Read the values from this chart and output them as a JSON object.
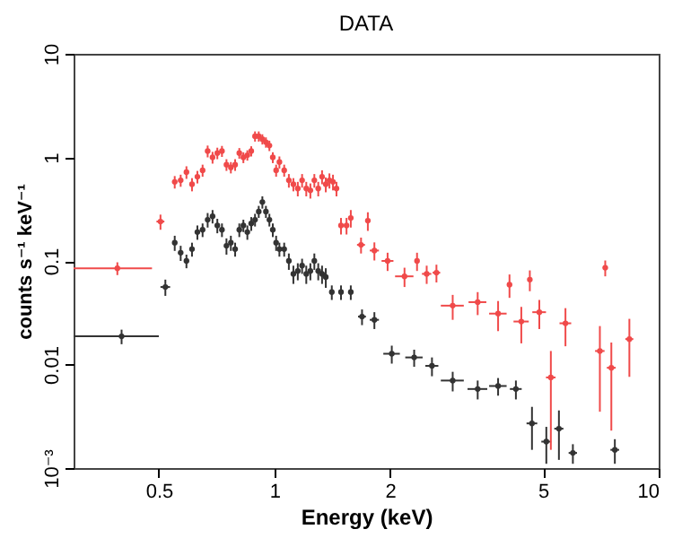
{
  "chart_data": {
    "type": "scatter",
    "title": "DATA",
    "xlabel": "Energy (keV)",
    "ylabel": "counts s⁻¹ keV⁻¹",
    "log": "xy",
    "xlim": [
      0.3,
      10
    ],
    "xticks": [
      0.5,
      1,
      2,
      5,
      10
    ],
    "ylim": [
      0.001,
      10
    ],
    "yticks": [
      {
        "value": 0.001,
        "label": "10⁻³"
      },
      0.01,
      0.1,
      1,
      10
    ],
    "series": [
      {
        "color": "#f04a4a",
        "x": [
          0.39,
          0.505,
          0.55,
          0.57,
          0.59,
          0.61,
          0.63,
          0.65,
          0.67,
          0.69,
          0.71,
          0.73,
          0.75,
          0.77,
          0.79,
          0.81,
          0.83,
          0.85,
          0.87,
          0.89,
          0.91,
          0.93,
          0.95,
          0.97,
          0.99,
          1.01,
          1.03,
          1.06,
          1.09,
          1.12,
          1.15,
          1.18,
          1.21,
          1.24,
          1.27,
          1.3,
          1.33,
          1.36,
          1.39,
          1.42,
          1.45,
          1.49,
          1.54,
          1.58,
          1.68,
          1.75,
          1.82,
          1.97,
          2.18,
          2.35,
          2.49,
          2.64,
          2.91,
          3.38,
          3.82,
          4.09,
          4.39,
          4.62,
          4.89,
          5.24,
          5.72,
          7.03,
          7.26,
          7.53,
          8.39
        ],
        "values": [
          0.085,
          0.24,
          0.58,
          0.6,
          0.72,
          0.55,
          0.65,
          0.75,
          1.15,
          1.0,
          1.1,
          1.15,
          0.85,
          0.8,
          0.85,
          1.1,
          1.0,
          1.05,
          1.15,
          1.6,
          1.6,
          1.5,
          1.4,
          1.3,
          1.0,
          0.75,
          0.9,
          0.75,
          0.6,
          0.55,
          0.5,
          0.6,
          0.5,
          0.48,
          0.6,
          0.5,
          0.65,
          0.55,
          0.6,
          0.58,
          0.5,
          0.22,
          0.22,
          0.26,
          0.143,
          0.245,
          0.126,
          0.1,
          0.071,
          0.1,
          0.075,
          0.077,
          0.037,
          0.04,
          0.031,
          0.059,
          0.026,
          0.066,
          0.032,
          0.0075,
          0.025,
          0.0135,
          0.086,
          0.0093,
          0.0176
        ],
        "xerrors": [
          0.09,
          0.012,
          0.008,
          0.008,
          0.008,
          0.008,
          0.008,
          0.008,
          0.008,
          0.008,
          0.008,
          0.008,
          0.008,
          0.008,
          0.008,
          0.008,
          0.008,
          0.008,
          0.008,
          0.008,
          0.008,
          0.008,
          0.008,
          0.008,
          0.008,
          0.01,
          0.01,
          0.01,
          0.01,
          0.01,
          0.01,
          0.01,
          0.01,
          0.01,
          0.01,
          0.01,
          0.01,
          0.01,
          0.01,
          0.01,
          0.01,
          0.02,
          0.02,
          0.015,
          0.04,
          0.02,
          0.05,
          0.07,
          0.12,
          0.03,
          0.07,
          0.06,
          0.2,
          0.18,
          0.2,
          0.05,
          0.2,
          0.05,
          0.2,
          0.15,
          0.2,
          0.2,
          0.1,
          0.2,
          0.2
        ],
        "errors": [
          0.012,
          0.04,
          0.08,
          0.08,
          0.1,
          0.08,
          0.09,
          0.1,
          0.15,
          0.13,
          0.14,
          0.14,
          0.11,
          0.1,
          0.11,
          0.13,
          0.12,
          0.12,
          0.13,
          0.18,
          0.18,
          0.17,
          0.16,
          0.15,
          0.12,
          0.1,
          0.12,
          0.1,
          0.09,
          0.08,
          0.08,
          0.09,
          0.08,
          0.08,
          0.09,
          0.08,
          0.1,
          0.09,
          0.1,
          0.1,
          0.08,
          0.04,
          0.04,
          0.05,
          0.025,
          0.05,
          0.025,
          0.02,
          0.015,
          0.02,
          0.015,
          0.015,
          0.01,
          0.01,
          0.01,
          0.015,
          0.01,
          0.015,
          0.01,
          0.006,
          0.01,
          0.01,
          0.015,
          0.007,
          0.01
        ]
      },
      {
        "color": "#333333",
        "x": [
          0.4,
          0.52,
          0.55,
          0.57,
          0.59,
          0.61,
          0.63,
          0.65,
          0.67,
          0.69,
          0.71,
          0.73,
          0.75,
          0.77,
          0.79,
          0.81,
          0.83,
          0.85,
          0.87,
          0.89,
          0.91,
          0.93,
          0.95,
          0.97,
          0.99,
          1.01,
          1.03,
          1.06,
          1.09,
          1.12,
          1.15,
          1.18,
          1.21,
          1.24,
          1.27,
          1.3,
          1.33,
          1.36,
          1.41,
          1.49,
          1.58,
          1.69,
          1.82,
          2.02,
          2.31,
          2.57,
          2.91,
          3.38,
          3.82,
          4.25,
          4.68,
          5.1,
          5.5,
          5.98,
          7.69
        ],
        "values": [
          0.0187,
          0.056,
          0.15,
          0.12,
          0.1,
          0.13,
          0.19,
          0.2,
          0.25,
          0.27,
          0.22,
          0.2,
          0.14,
          0.15,
          0.13,
          0.2,
          0.22,
          0.19,
          0.23,
          0.25,
          0.3,
          0.37,
          0.3,
          0.25,
          0.2,
          0.15,
          0.13,
          0.13,
          0.1,
          0.075,
          0.08,
          0.09,
          0.075,
          0.08,
          0.1,
          0.08,
          0.075,
          0.07,
          0.05,
          0.05,
          0.05,
          0.029,
          0.027,
          0.0127,
          0.0117,
          0.0097,
          0.007,
          0.0058,
          0.0062,
          0.0058,
          0.0027,
          0.0018,
          0.0024,
          0.0014,
          0.0015
        ],
        "xerrors": [
          0.1,
          0.015,
          0.008,
          0.008,
          0.008,
          0.008,
          0.008,
          0.008,
          0.008,
          0.008,
          0.008,
          0.008,
          0.008,
          0.008,
          0.008,
          0.008,
          0.008,
          0.008,
          0.008,
          0.008,
          0.008,
          0.008,
          0.008,
          0.008,
          0.008,
          0.01,
          0.01,
          0.01,
          0.01,
          0.01,
          0.01,
          0.01,
          0.01,
          0.01,
          0.01,
          0.01,
          0.01,
          0.01,
          0.02,
          0.02,
          0.02,
          0.04,
          0.05,
          0.1,
          0.12,
          0.1,
          0.2,
          0.2,
          0.2,
          0.15,
          0.15,
          0.15,
          0.15,
          0.15,
          0.2
        ],
        "errors": [
          0.003,
          0.01,
          0.025,
          0.02,
          0.015,
          0.02,
          0.03,
          0.03,
          0.04,
          0.04,
          0.035,
          0.03,
          0.025,
          0.025,
          0.02,
          0.03,
          0.03,
          0.03,
          0.035,
          0.035,
          0.04,
          0.05,
          0.04,
          0.035,
          0.03,
          0.025,
          0.02,
          0.02,
          0.018,
          0.015,
          0.015,
          0.015,
          0.015,
          0.015,
          0.018,
          0.015,
          0.015,
          0.015,
          0.008,
          0.008,
          0.008,
          0.005,
          0.005,
          0.0025,
          0.0022,
          0.002,
          0.0015,
          0.0012,
          0.0012,
          0.0012,
          0.0012,
          0.0007,
          0.0012,
          0.0003,
          0.0004
        ]
      }
    ]
  }
}
